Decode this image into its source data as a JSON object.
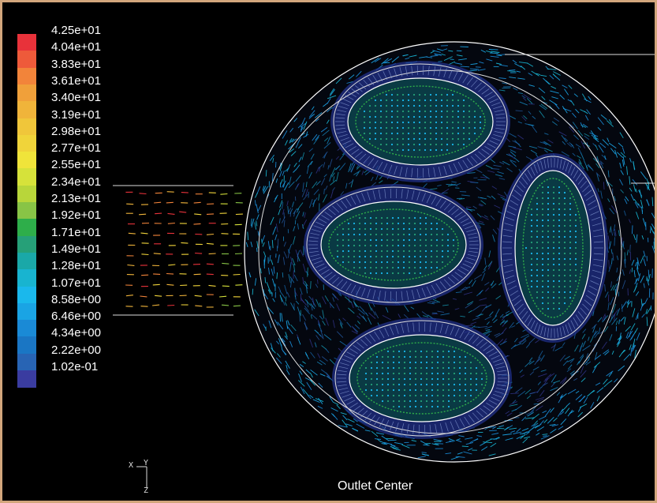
{
  "colorbar": {
    "labels": [
      "4.25e+01",
      "4.04e+01",
      "3.83e+01",
      "3.61e+01",
      "3.40e+01",
      "3.19e+01",
      "2.98e+01",
      "2.77e+01",
      "2.55e+01",
      "2.34e+01",
      "2.13e+01",
      "1.92e+01",
      "1.71e+01",
      "1.49e+01",
      "1.28e+01",
      "1.07e+01",
      "8.58e+00",
      "6.46e+00",
      "4.34e+00",
      "2.22e+00",
      "1.02e-01"
    ],
    "colors": [
      "#e8323a",
      "#ee5a3a",
      "#f2843a",
      "#f0a03a",
      "#f0b43a",
      "#f0c63a",
      "#f0d43a",
      "#f0e43a",
      "#d6e23a",
      "#b8d63a",
      "#88c446",
      "#2eae4a",
      "#26a078",
      "#1aa8a8",
      "#18b4d0",
      "#1ab8ec",
      "#1aa4e4",
      "#1a8ad6",
      "#1a76c4",
      "#2864b4",
      "#3a3ca0"
    ]
  },
  "caption": "Outlet Center",
  "axes": {
    "x": "X",
    "y": "Y",
    "z": "Z"
  }
}
